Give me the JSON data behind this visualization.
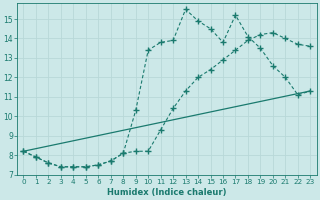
{
  "xlabel": "Humidex (Indice chaleur)",
  "bg_color": "#cce8e8",
  "grid_color": "#b8d8d8",
  "line_color": "#1a7a6e",
  "xlim": [
    -0.5,
    23.5
  ],
  "ylim": [
    7.0,
    15.8
  ],
  "yticks": [
    7,
    8,
    9,
    10,
    11,
    12,
    13,
    14,
    15
  ],
  "xticks": [
    0,
    1,
    2,
    3,
    4,
    5,
    6,
    7,
    8,
    9,
    10,
    11,
    12,
    13,
    14,
    15,
    16,
    17,
    18,
    19,
    20,
    21,
    22,
    23
  ],
  "line1_x": [
    0,
    1,
    2,
    3,
    4,
    5,
    6,
    7,
    8,
    9,
    10,
    11,
    12,
    13,
    14,
    15,
    16,
    17,
    18,
    19,
    20,
    21,
    22,
    23
  ],
  "line1_y": [
    8.2,
    7.9,
    7.6,
    7.4,
    7.4,
    7.4,
    7.5,
    7.7,
    8.1,
    10.3,
    13.4,
    13.8,
    13.9,
    15.5,
    14.9,
    14.5,
    13.8,
    15.2,
    14.1,
    13.5,
    12.6,
    12.0,
    11.1,
    11.3
  ],
  "line2_x": [
    0,
    1,
    2,
    3,
    4,
    5,
    6,
    7,
    8,
    9,
    10,
    11,
    12,
    13,
    14,
    15,
    16,
    17,
    18,
    19,
    20,
    21,
    22,
    23
  ],
  "line2_y": [
    8.2,
    7.9,
    7.6,
    7.4,
    7.4,
    7.4,
    7.5,
    7.7,
    8.1,
    8.2,
    8.2,
    9.3,
    10.4,
    11.3,
    12.0,
    12.4,
    12.9,
    13.4,
    13.9,
    14.2,
    14.3,
    14.0,
    13.7,
    13.6
  ],
  "line3_x": [
    0,
    23
  ],
  "line3_y": [
    8.2,
    11.3
  ]
}
